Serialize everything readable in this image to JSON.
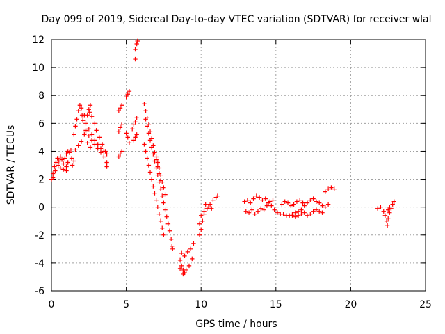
{
  "chart_data": {
    "type": "scatter",
    "title": "Day 099 of 2019, Sidereal Day-to-day VTEC variation (SDTVAR) for receiver wlal",
    "xlabel": "GPS time / hours",
    "ylabel": "SDTVAR / TECUs",
    "xlim": [
      0,
      25
    ],
    "ylim": [
      -6,
      12
    ],
    "xticks": [
      "0",
      "5",
      "10",
      "15",
      "20",
      "25"
    ],
    "yticks": [
      "-6",
      "-4",
      "-2",
      "0",
      "2",
      "4",
      "6",
      "8",
      "10",
      "12"
    ],
    "grid": true,
    "marker": "plus",
    "color": "#ff0000",
    "series": [
      {
        "points": [
          [
            0.0,
            2.0
          ],
          [
            0.1,
            2.4
          ],
          [
            0.2,
            2.9
          ],
          [
            0.3,
            3.2
          ],
          [
            0.4,
            3.5
          ],
          [
            0.5,
            3.3
          ],
          [
            0.6,
            3.6
          ],
          [
            0.7,
            3.4
          ],
          [
            0.8,
            3.1
          ],
          [
            0.9,
            3.5
          ],
          [
            1.0,
            2.9
          ],
          [
            1.1,
            3.2
          ],
          [
            0.1,
            2.1
          ],
          [
            0.25,
            2.6
          ],
          [
            0.45,
            3.0
          ],
          [
            0.6,
            2.8
          ],
          [
            0.8,
            2.7
          ],
          [
            1.0,
            2.6
          ],
          [
            1.0,
            3.8
          ],
          [
            1.1,
            4.0
          ],
          [
            1.2,
            3.9
          ],
          [
            1.3,
            4.1
          ],
          [
            1.35,
            3.5
          ],
          [
            1.4,
            3.0
          ],
          [
            1.5,
            3.3
          ],
          [
            1.5,
            5.2
          ],
          [
            1.6,
            5.8
          ],
          [
            1.7,
            6.3
          ],
          [
            1.8,
            6.9
          ],
          [
            1.9,
            7.3
          ],
          [
            2.0,
            7.1
          ],
          [
            2.05,
            6.6
          ],
          [
            1.6,
            4.1
          ],
          [
            1.8,
            4.4
          ],
          [
            2.0,
            4.7
          ],
          [
            2.2,
            5.2
          ],
          [
            2.3,
            5.5
          ],
          [
            2.4,
            4.6
          ],
          [
            2.6,
            4.3
          ],
          [
            2.1,
            6.2
          ],
          [
            2.2,
            6.6
          ],
          [
            2.3,
            6.0
          ],
          [
            2.5,
            5.6
          ],
          [
            2.7,
            5.2
          ],
          [
            2.9,
            4.8
          ],
          [
            3.1,
            4.5
          ],
          [
            3.3,
            4.2
          ],
          [
            3.5,
            4.0
          ],
          [
            2.3,
            5.4
          ],
          [
            2.5,
            5.1
          ],
          [
            2.7,
            4.8
          ],
          [
            2.9,
            4.5
          ],
          [
            3.1,
            4.2
          ],
          [
            3.3,
            3.9
          ],
          [
            3.5,
            3.6
          ],
          [
            2.4,
            6.6
          ],
          [
            2.5,
            7.0
          ],
          [
            2.6,
            7.3
          ],
          [
            2.55,
            6.8
          ],
          [
            2.7,
            6.5
          ],
          [
            2.9,
            6.0
          ],
          [
            3.0,
            5.5
          ],
          [
            3.2,
            5.0
          ],
          [
            3.4,
            4.5
          ],
          [
            3.6,
            4.0
          ],
          [
            3.7,
            3.8
          ],
          [
            3.7,
            3.2
          ],
          [
            3.7,
            2.9
          ],
          [
            4.5,
            3.6
          ],
          [
            4.6,
            3.8
          ],
          [
            4.7,
            4.0
          ],
          [
            4.5,
            5.4
          ],
          [
            4.6,
            5.7
          ],
          [
            4.7,
            5.9
          ],
          [
            4.5,
            6.9
          ],
          [
            4.6,
            7.1
          ],
          [
            4.7,
            7.3
          ],
          [
            5.0,
            5.3
          ],
          [
            5.1,
            5.0
          ],
          [
            5.2,
            4.6
          ],
          [
            5.0,
            7.9
          ],
          [
            5.1,
            8.1
          ],
          [
            5.2,
            8.3
          ],
          [
            5.4,
            5.6
          ],
          [
            5.5,
            5.9
          ],
          [
            5.6,
            6.1
          ],
          [
            5.7,
            6.4
          ],
          [
            5.5,
            4.8
          ],
          [
            5.6,
            5.0
          ],
          [
            5.7,
            5.2
          ],
          [
            5.6,
            10.6
          ],
          [
            5.6,
            11.3
          ],
          [
            5.7,
            11.7
          ],
          [
            5.75,
            11.9
          ],
          [
            6.2,
            7.4
          ],
          [
            6.3,
            6.9
          ],
          [
            6.4,
            6.4
          ],
          [
            6.5,
            5.9
          ],
          [
            6.6,
            5.4
          ],
          [
            6.7,
            4.9
          ],
          [
            6.8,
            4.4
          ],
          [
            6.9,
            3.9
          ],
          [
            7.0,
            3.4
          ],
          [
            7.1,
            2.9
          ],
          [
            7.2,
            2.4
          ],
          [
            7.3,
            1.9
          ],
          [
            6.3,
            6.3
          ],
          [
            6.4,
            5.8
          ],
          [
            6.5,
            5.3
          ],
          [
            6.6,
            4.8
          ],
          [
            6.7,
            4.3
          ],
          [
            6.8,
            3.8
          ],
          [
            6.9,
            3.3
          ],
          [
            7.0,
            2.8
          ],
          [
            7.1,
            2.3
          ],
          [
            7.2,
            1.8
          ],
          [
            7.3,
            1.3
          ],
          [
            7.4,
            0.8
          ],
          [
            7.5,
            0.3
          ],
          [
            7.6,
            -0.2
          ],
          [
            7.7,
            -0.7
          ],
          [
            7.8,
            -1.2
          ],
          [
            7.9,
            -1.7
          ],
          [
            8.0,
            -2.3
          ],
          [
            8.05,
            -2.8
          ],
          [
            8.1,
            -3.0
          ],
          [
            6.2,
            4.5
          ],
          [
            6.3,
            4.0
          ],
          [
            6.4,
            3.5
          ],
          [
            6.5,
            3.0
          ],
          [
            6.6,
            2.5
          ],
          [
            6.7,
            2.0
          ],
          [
            6.8,
            1.5
          ],
          [
            6.9,
            1.0
          ],
          [
            7.0,
            0.5
          ],
          [
            7.1,
            0.0
          ],
          [
            7.2,
            -0.5
          ],
          [
            7.3,
            -1.0
          ],
          [
            7.4,
            -1.5
          ],
          [
            7.5,
            -2.0
          ],
          [
            7.0,
            3.6
          ],
          [
            7.1,
            3.2
          ],
          [
            7.2,
            2.8
          ],
          [
            7.3,
            2.3
          ],
          [
            7.4,
            1.8
          ],
          [
            7.5,
            1.4
          ],
          [
            7.6,
            0.9
          ],
          [
            8.6,
            -3.8
          ],
          [
            8.7,
            -4.2
          ],
          [
            8.8,
            -4.5
          ],
          [
            8.9,
            -4.7
          ],
          [
            9.0,
            -4.5
          ],
          [
            9.2,
            -4.2
          ],
          [
            9.4,
            -3.7
          ],
          [
            8.7,
            -3.3
          ],
          [
            8.9,
            -3.5
          ],
          [
            9.1,
            -3.2
          ],
          [
            9.3,
            -3.0
          ],
          [
            9.5,
            -2.6
          ],
          [
            8.6,
            -4.4
          ],
          [
            8.8,
            -4.8
          ],
          [
            9.9,
            -2.0
          ],
          [
            10.0,
            -1.6
          ],
          [
            10.1,
            -1.0
          ],
          [
            10.2,
            -0.5
          ],
          [
            10.4,
            -0.1
          ],
          [
            10.6,
            0.2
          ],
          [
            10.8,
            0.5
          ],
          [
            11.0,
            0.7
          ],
          [
            11.1,
            0.8
          ],
          [
            9.9,
            -1.2
          ],
          [
            10.0,
            -0.6
          ],
          [
            10.2,
            -0.3
          ],
          [
            10.3,
            0.2
          ],
          [
            10.5,
            0.0
          ],
          [
            10.7,
            -0.1
          ],
          [
            12.9,
            0.4
          ],
          [
            13.1,
            0.5
          ],
          [
            13.3,
            0.3
          ],
          [
            13.5,
            0.6
          ],
          [
            13.7,
            0.8
          ],
          [
            13.9,
            0.7
          ],
          [
            14.1,
            0.5
          ],
          [
            14.3,
            0.6
          ],
          [
            14.5,
            0.3
          ],
          [
            14.7,
            0.1
          ],
          [
            14.9,
            -0.2
          ],
          [
            15.1,
            -0.4
          ],
          [
            15.3,
            -0.5
          ],
          [
            15.5,
            -0.5
          ],
          [
            15.7,
            -0.6
          ],
          [
            15.9,
            -0.6
          ],
          [
            16.1,
            -0.5
          ],
          [
            16.3,
            -0.4
          ],
          [
            16.5,
            -0.3
          ],
          [
            13.0,
            -0.3
          ],
          [
            13.2,
            -0.4
          ],
          [
            13.4,
            -0.2
          ],
          [
            13.6,
            -0.5
          ],
          [
            13.8,
            -0.3
          ],
          [
            14.0,
            -0.1
          ],
          [
            14.2,
            -0.2
          ],
          [
            14.4,
            0.1
          ],
          [
            14.6,
            0.4
          ],
          [
            14.8,
            0.5
          ],
          [
            15.4,
            0.2
          ],
          [
            15.6,
            0.4
          ],
          [
            15.8,
            0.3
          ],
          [
            16.0,
            0.1
          ],
          [
            16.2,
            0.2
          ],
          [
            16.4,
            0.4
          ],
          [
            16.6,
            0.5
          ],
          [
            16.8,
            0.3
          ],
          [
            16.1,
            -0.6
          ],
          [
            16.3,
            -0.7
          ],
          [
            16.5,
            -0.6
          ],
          [
            16.7,
            -0.5
          ],
          [
            16.9,
            0.1
          ],
          [
            17.1,
            0.3
          ],
          [
            17.3,
            0.5
          ],
          [
            17.5,
            0.6
          ],
          [
            17.7,
            0.4
          ],
          [
            17.9,
            0.3
          ],
          [
            18.1,
            0.1
          ],
          [
            18.3,
            0.0
          ],
          [
            18.5,
            0.2
          ],
          [
            16.7,
            -0.2
          ],
          [
            16.9,
            -0.4
          ],
          [
            17.1,
            -0.6
          ],
          [
            17.3,
            -0.5
          ],
          [
            17.5,
            -0.3
          ],
          [
            17.7,
            -0.2
          ],
          [
            17.9,
            -0.3
          ],
          [
            18.1,
            -0.4
          ],
          [
            18.3,
            1.1
          ],
          [
            18.5,
            1.3
          ],
          [
            18.7,
            1.4
          ],
          [
            18.9,
            1.3
          ],
          [
            21.8,
            -0.1
          ],
          [
            22.0,
            0.0
          ],
          [
            22.2,
            -0.3
          ],
          [
            22.3,
            -0.6
          ],
          [
            22.4,
            -1.0
          ],
          [
            22.45,
            -1.3
          ],
          [
            22.5,
            -0.8
          ],
          [
            22.6,
            -0.4
          ],
          [
            22.7,
            -0.1
          ],
          [
            22.8,
            0.2
          ],
          [
            22.9,
            0.4
          ],
          [
            22.5,
            -0.2
          ],
          [
            22.6,
            0.0
          ]
        ]
      }
    ]
  }
}
